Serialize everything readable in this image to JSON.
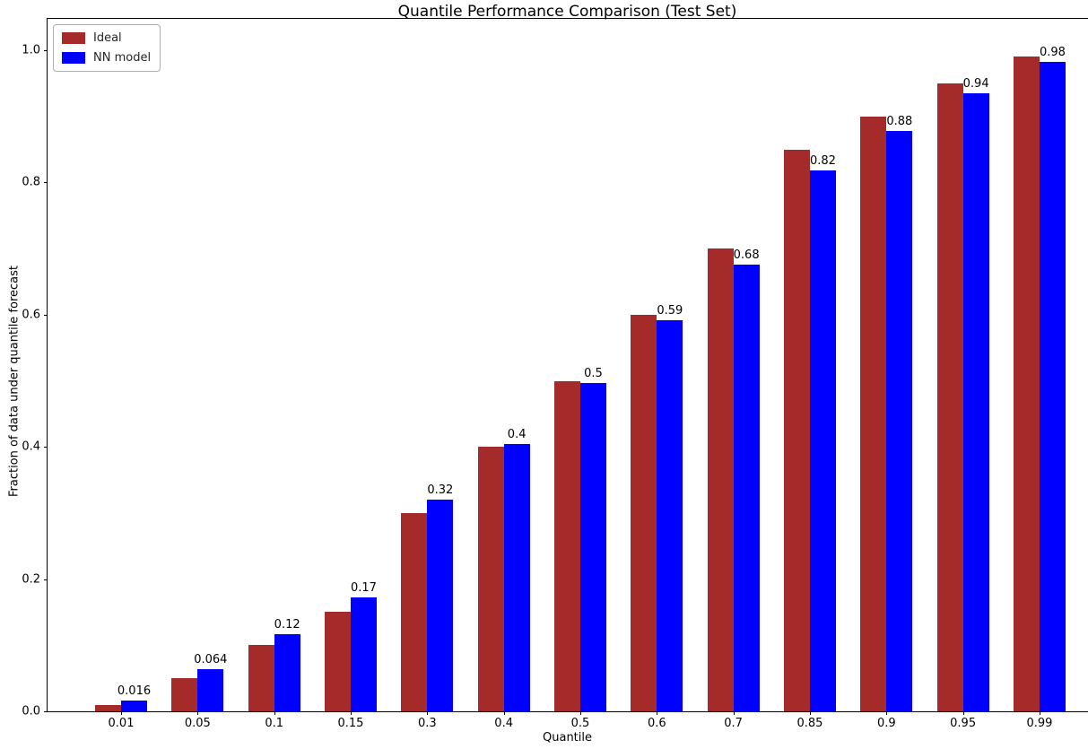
{
  "figure": {
    "title": "Quantile Performance Comparison (Test Set)",
    "xlabel": "Quantile",
    "ylabel": "Fraction of data under quantile forecast"
  },
  "legend": {
    "position": "upper left",
    "entries": [
      {
        "label": "Ideal",
        "color": "#A52A2A"
      },
      {
        "label": "NN model",
        "color": "#0000FF"
      }
    ]
  },
  "chart_data": {
    "type": "bar",
    "title": "Quantile Performance Comparison (Test Set)",
    "xlabel": "Quantile",
    "ylabel": "Fraction of data under quantile forecast",
    "categories": [
      "0.01",
      "0.05",
      "0.1",
      "0.15",
      "0.3",
      "0.4",
      "0.5",
      "0.6",
      "0.7",
      "0.85",
      "0.9",
      "0.95",
      "0.99"
    ],
    "series": [
      {
        "name": "Ideal",
        "color": "#A52A2A",
        "values": [
          0.01,
          0.05,
          0.1,
          0.15,
          0.3,
          0.4,
          0.5,
          0.6,
          0.7,
          0.85,
          0.9,
          0.95,
          0.99
        ]
      },
      {
        "name": "NN model",
        "color": "#0000FF",
        "values": [
          0.016,
          0.064,
          0.117,
          0.172,
          0.32,
          0.405,
          0.497,
          0.592,
          0.676,
          0.818,
          0.878,
          0.935,
          0.983
        ]
      }
    ],
    "bar_labels": {
      "series": "NN model",
      "values": [
        "0.016",
        "0.064",
        "0.12",
        "0.17",
        "0.32",
        "0.4",
        "0.5",
        "0.59",
        "0.68",
        "0.82",
        "0.88",
        "0.94",
        "0.98"
      ]
    },
    "yticks": [
      "0.0",
      "0.2",
      "0.4",
      "0.6",
      "0.8",
      "1.0"
    ],
    "ylim": [
      0,
      1.05
    ],
    "grid": false,
    "legend_position": "upper left"
  }
}
